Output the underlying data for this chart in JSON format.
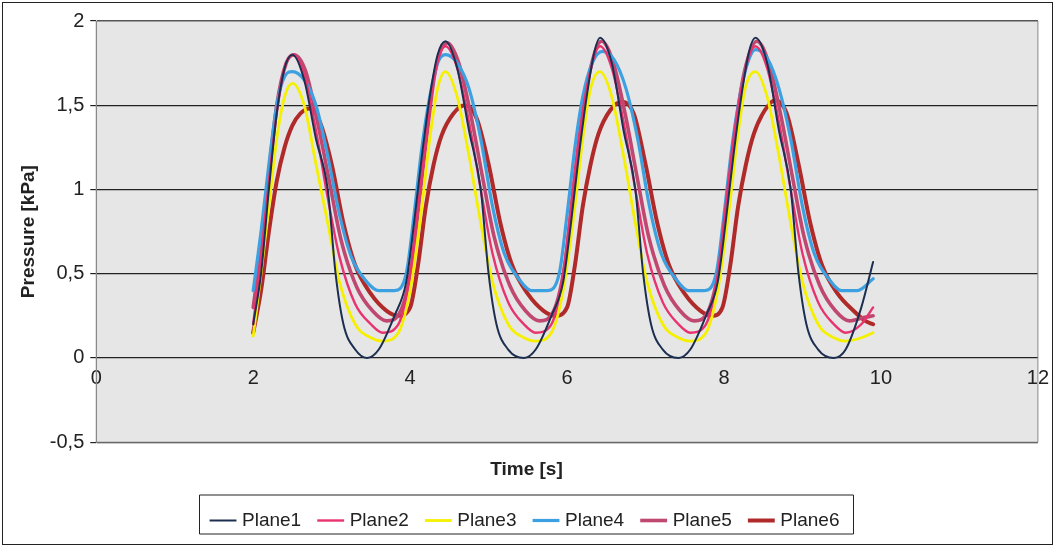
{
  "chart_data": {
    "type": "line",
    "xlabel": "Time [s]",
    "ylabel": "Pressure [kPa]",
    "xlim": [
      0,
      12
    ],
    "xticks": [
      0,
      2,
      4,
      6,
      8,
      10,
      12
    ],
    "ylim": [
      -0.5,
      2
    ],
    "yticks": [
      {
        "value": -0.5,
        "label": "-0,5"
      },
      0,
      {
        "value": 0.5,
        "label": "0,5"
      },
      1,
      {
        "value": 1.5,
        "label": "1,5"
      },
      2
    ],
    "grid": "y",
    "legend": "bottom",
    "marker": "none",
    "line_style": "solid",
    "series": [
      {
        "name": "Plane1",
        "color": "#1c2f50",
        "x": [
          2.0,
          2.1,
          2.2,
          2.3,
          2.4,
          2.5,
          2.65,
          2.8,
          2.95,
          3.05,
          3.15,
          3.3,
          3.45,
          3.6,
          3.8,
          3.95,
          4.05,
          4.15,
          4.25,
          4.35,
          4.45,
          4.6,
          4.75,
          4.9,
          5.0,
          5.1,
          5.25,
          5.45,
          5.6,
          5.8,
          5.95,
          6.05,
          6.15,
          6.25,
          6.35,
          6.42,
          6.57,
          6.72,
          6.87,
          6.97,
          7.07,
          7.22,
          7.42,
          7.57,
          7.77,
          7.92,
          8.02,
          8.12,
          8.22,
          8.32,
          8.4,
          8.55,
          8.7,
          8.85,
          8.95,
          9.05,
          9.2,
          9.4,
          9.55,
          9.75,
          9.9
        ],
        "values": [
          0.2,
          0.5,
          1.0,
          1.45,
          1.72,
          1.8,
          1.65,
          1.3,
          1.0,
          0.5,
          0.2,
          0.05,
          0,
          0.05,
          0.25,
          0.45,
          0.8,
          1.2,
          1.55,
          1.8,
          1.88,
          1.72,
          1.35,
          1.0,
          0.5,
          0.2,
          0.05,
          0,
          0.05,
          0.25,
          0.45,
          0.8,
          1.2,
          1.55,
          1.82,
          1.9,
          1.75,
          1.35,
          1.0,
          0.5,
          0.2,
          0.05,
          0,
          0.05,
          0.25,
          0.45,
          0.8,
          1.2,
          1.55,
          1.82,
          1.9,
          1.75,
          1.35,
          1.0,
          0.5,
          0.2,
          0.05,
          0,
          0.05,
          0.3,
          0.57
        ]
      },
      {
        "name": "Plane2",
        "color": "#e8336e",
        "x": [
          2.0,
          2.1,
          2.2,
          2.3,
          2.4,
          2.5,
          2.65,
          2.8,
          2.95,
          3.1,
          3.3,
          3.5,
          3.65,
          3.85,
          4.0,
          4.1,
          4.2,
          4.3,
          4.45,
          4.6,
          4.75,
          4.9,
          5.05,
          5.25,
          5.45,
          5.6,
          5.8,
          5.95,
          6.05,
          6.15,
          6.27,
          6.42,
          6.57,
          6.72,
          6.87,
          7.02,
          7.22,
          7.42,
          7.57,
          7.77,
          7.92,
          8.02,
          8.12,
          8.24,
          8.4,
          8.55,
          8.7,
          8.85,
          9.0,
          9.2,
          9.4,
          9.55,
          9.75,
          9.9
        ],
        "values": [
          0.2,
          0.6,
          1.05,
          1.45,
          1.72,
          1.8,
          1.68,
          1.35,
          0.95,
          0.6,
          0.32,
          0.2,
          0.15,
          0.2,
          0.5,
          0.9,
          1.3,
          1.65,
          1.85,
          1.72,
          1.4,
          1.0,
          0.62,
          0.33,
          0.2,
          0.15,
          0.2,
          0.5,
          0.9,
          1.3,
          1.65,
          1.85,
          1.72,
          1.4,
          1.0,
          0.62,
          0.33,
          0.2,
          0.15,
          0.2,
          0.5,
          0.9,
          1.3,
          1.65,
          1.85,
          1.72,
          1.4,
          1.0,
          0.62,
          0.33,
          0.2,
          0.15,
          0.2,
          0.3
        ]
      },
      {
        "name": "Plane3",
        "color": "#f5f000",
        "x": [
          2.0,
          2.1,
          2.2,
          2.3,
          2.4,
          2.5,
          2.65,
          2.8,
          2.95,
          3.1,
          3.3,
          3.5,
          3.65,
          3.85,
          4.0,
          4.15,
          4.25,
          4.35,
          4.45,
          4.6,
          4.75,
          4.9,
          5.05,
          5.25,
          5.45,
          5.6,
          5.8,
          5.95,
          6.1,
          6.2,
          6.3,
          6.42,
          6.57,
          6.72,
          6.87,
          7.02,
          7.22,
          7.42,
          7.57,
          7.77,
          7.92,
          8.07,
          8.17,
          8.27,
          8.4,
          8.55,
          8.7,
          8.85,
          9.0,
          9.2,
          9.4,
          9.55,
          9.75,
          9.9
        ],
        "values": [
          0.13,
          0.5,
          0.9,
          1.3,
          1.55,
          1.63,
          1.5,
          1.15,
          0.8,
          0.45,
          0.2,
          0.12,
          0.1,
          0.15,
          0.4,
          0.9,
          1.3,
          1.6,
          1.7,
          1.55,
          1.2,
          0.8,
          0.45,
          0.2,
          0.12,
          0.1,
          0.15,
          0.4,
          0.9,
          1.3,
          1.6,
          1.7,
          1.55,
          1.2,
          0.8,
          0.45,
          0.2,
          0.12,
          0.1,
          0.15,
          0.4,
          0.9,
          1.3,
          1.6,
          1.7,
          1.55,
          1.2,
          0.8,
          0.45,
          0.2,
          0.12,
          0.1,
          0.12,
          0.15
        ]
      },
      {
        "name": "Plane4",
        "color": "#3da0e0",
        "x": [
          2.0,
          2.1,
          2.2,
          2.3,
          2.4,
          2.5,
          2.65,
          2.8,
          2.95,
          3.1,
          3.25,
          3.45,
          3.6,
          3.8,
          3.95,
          4.05,
          4.15,
          4.25,
          4.35,
          4.45,
          4.6,
          4.75,
          4.9,
          5.05,
          5.2,
          5.4,
          5.55,
          5.75,
          5.9,
          6.0,
          6.1,
          6.2,
          6.32,
          6.45,
          6.6,
          6.75,
          6.9,
          7.05,
          7.2,
          7.4,
          7.55,
          7.75,
          7.9,
          8.0,
          8.1,
          8.2,
          8.3,
          8.4,
          8.55,
          8.7,
          8.85,
          9.0,
          9.15,
          9.35,
          9.5,
          9.7,
          9.9
        ],
        "values": [
          0.4,
          0.75,
          1.15,
          1.5,
          1.67,
          1.7,
          1.65,
          1.5,
          1.2,
          0.85,
          0.6,
          0.45,
          0.4,
          0.4,
          0.5,
          0.85,
          1.25,
          1.55,
          1.75,
          1.8,
          1.75,
          1.6,
          1.3,
          0.9,
          0.62,
          0.46,
          0.4,
          0.4,
          0.5,
          0.85,
          1.25,
          1.55,
          1.75,
          1.82,
          1.77,
          1.6,
          1.3,
          0.9,
          0.62,
          0.46,
          0.4,
          0.4,
          0.5,
          0.85,
          1.25,
          1.55,
          1.75,
          1.83,
          1.78,
          1.6,
          1.3,
          0.9,
          0.62,
          0.46,
          0.4,
          0.4,
          0.47
        ]
      },
      {
        "name": "Plane5",
        "color": "#c04870",
        "x": [
          2.0,
          2.1,
          2.2,
          2.3,
          2.42,
          2.52,
          2.67,
          2.82,
          2.97,
          3.12,
          3.32,
          3.52,
          3.7,
          3.88,
          4.02,
          4.12,
          4.22,
          4.32,
          4.47,
          4.62,
          4.77,
          4.92,
          5.07,
          5.27,
          5.47,
          5.65,
          5.83,
          5.97,
          6.07,
          6.17,
          6.29,
          6.44,
          6.59,
          6.74,
          6.89,
          7.04,
          7.24,
          7.44,
          7.62,
          7.8,
          7.94,
          8.04,
          8.14,
          8.26,
          8.42,
          8.57,
          8.72,
          8.87,
          9.02,
          9.22,
          9.42,
          9.6,
          9.78,
          9.9
        ],
        "values": [
          0.3,
          0.65,
          1.1,
          1.5,
          1.75,
          1.8,
          1.7,
          1.4,
          1.05,
          0.7,
          0.42,
          0.28,
          0.22,
          0.28,
          0.55,
          0.95,
          1.35,
          1.7,
          1.87,
          1.75,
          1.45,
          1.08,
          0.72,
          0.43,
          0.28,
          0.22,
          0.28,
          0.55,
          0.95,
          1.35,
          1.7,
          1.88,
          1.75,
          1.45,
          1.08,
          0.72,
          0.43,
          0.28,
          0.22,
          0.28,
          0.55,
          0.95,
          1.35,
          1.7,
          1.88,
          1.75,
          1.45,
          1.08,
          0.72,
          0.43,
          0.28,
          0.22,
          0.24,
          0.25
        ]
      },
      {
        "name": "Plane6",
        "color": "#b02a2a",
        "x": [
          2.0,
          2.1,
          2.2,
          2.3,
          2.4,
          2.5,
          2.6,
          2.72,
          2.85,
          3.0,
          3.15,
          3.3,
          3.5,
          3.7,
          3.85,
          4.0,
          4.1,
          4.2,
          4.3,
          4.4,
          4.55,
          4.7,
          4.85,
          5.0,
          5.15,
          5.3,
          5.5,
          5.7,
          5.85,
          6.0,
          6.1,
          6.2,
          6.3,
          6.4,
          6.55,
          6.7,
          6.85,
          7.0,
          7.15,
          7.3,
          7.5,
          7.7,
          7.85,
          7.98,
          8.08,
          8.18,
          8.28,
          8.38,
          8.52,
          8.65,
          8.8,
          8.95,
          9.1,
          9.25,
          9.45,
          9.65,
          9.8,
          9.9
        ],
        "values": [
          0.15,
          0.4,
          0.75,
          1.05,
          1.25,
          1.38,
          1.45,
          1.48,
          1.4,
          1.15,
          0.8,
          0.55,
          0.38,
          0.28,
          0.25,
          0.3,
          0.55,
          0.9,
          1.15,
          1.32,
          1.45,
          1.5,
          1.42,
          1.15,
          0.8,
          0.55,
          0.38,
          0.28,
          0.25,
          0.3,
          0.55,
          0.9,
          1.15,
          1.33,
          1.47,
          1.52,
          1.45,
          1.15,
          0.8,
          0.55,
          0.38,
          0.28,
          0.25,
          0.3,
          0.55,
          0.9,
          1.15,
          1.33,
          1.47,
          1.53,
          1.45,
          1.15,
          0.8,
          0.55,
          0.38,
          0.28,
          0.22,
          0.2
        ]
      }
    ]
  }
}
